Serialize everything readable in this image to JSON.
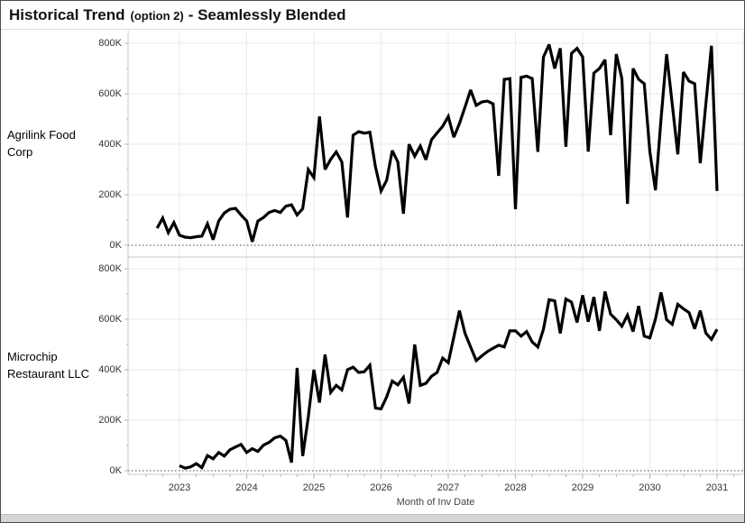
{
  "title": {
    "main": "Historical Trend",
    "paren": "(option 2)",
    "suffix": "- Seamlessly Blended"
  },
  "rows": [
    {
      "label": "Agrilink Food Corp"
    },
    {
      "label": "Microchip Restaurant LLC"
    }
  ],
  "y_axis": {
    "tick_labels": [
      "0K",
      "200K",
      "400K",
      "600K",
      "800K"
    ],
    "tick_values_thousands": [
      0,
      200,
      400,
      600,
      800
    ],
    "max_thousands": 800
  },
  "x_axis": {
    "title": "Month of Inv Date",
    "year_labels": [
      "2023",
      "2024",
      "2025",
      "2026",
      "2027",
      "2028",
      "2029",
      "2030",
      "2031"
    ]
  },
  "colors": {
    "line": "#000000",
    "grid": "#e9e9e9",
    "zero_line": "#6b6b6b",
    "panel_border": "#c9c9c9",
    "tick": "#b5b5b5",
    "axis_text": "#333333",
    "scrollbar_track": "#d6d6d6"
  },
  "chart_data": [
    {
      "type": "line",
      "name": "Agrilink Food Corp",
      "unit": "thousands",
      "x_start": "2022-09",
      "x_end": "2031-01",
      "x_interval": "month",
      "xlabel": "Month of Inv Date",
      "ylim_thousands": [
        0,
        800
      ],
      "grid": true,
      "values_thousands": [
        68,
        108,
        50,
        90,
        40,
        32,
        30,
        34,
        36,
        85,
        22,
        96,
        128,
        143,
        146,
        120,
        96,
        14,
        96,
        110,
        130,
        138,
        130,
        155,
        160,
        120,
        145,
        300,
        268,
        510,
        300,
        340,
        370,
        330,
        110,
        436,
        450,
        444,
        448,
        310,
        215,
        257,
        375,
        330,
        125,
        400,
        353,
        393,
        339,
        418,
        445,
        471,
        510,
        428,
        482,
        548,
        615,
        554,
        568,
        571,
        560,
        275,
        657,
        660,
        143,
        665,
        670,
        660,
        370,
        745,
        795,
        700,
        780,
        390,
        760,
        780,
        746,
        371,
        682,
        700,
        735,
        436,
        757,
        660,
        164,
        700,
        657,
        640,
        371,
        218,
        500,
        757,
        560,
        360,
        686,
        650,
        640,
        325,
        560,
        790,
        215
      ]
    },
    {
      "type": "line",
      "name": "Microchip Restaurant LLC",
      "unit": "thousands",
      "x_start": "2023-01",
      "x_end": "2031-01",
      "x_interval": "month",
      "xlabel": "Month of Inv Date",
      "ylim_thousands": [
        0,
        800
      ],
      "grid": true,
      "values_thousands": [
        20,
        10,
        15,
        28,
        12,
        60,
        47,
        72,
        58,
        83,
        94,
        104,
        72,
        87,
        76,
        101,
        112,
        130,
        137,
        120,
        32,
        407,
        58,
        212,
        400,
        270,
        460,
        310,
        338,
        320,
        400,
        410,
        389,
        392,
        418,
        248,
        245,
        292,
        355,
        340,
        370,
        266,
        500,
        338,
        346,
        374,
        389,
        446,
        428,
        530,
        634,
        544,
        490,
        436,
        455,
        472,
        485,
        497,
        490,
        554,
        554,
        533,
        551,
        510,
        490,
        560,
        677,
        673,
        544,
        680,
        668,
        587,
        695,
        590,
        688,
        554,
        710,
        620,
        598,
        572,
        616,
        551,
        652,
        533,
        526,
        600,
        706,
        598,
        580,
        659,
        641,
        626,
        562,
        634,
        545,
        520,
        560
      ]
    }
  ]
}
